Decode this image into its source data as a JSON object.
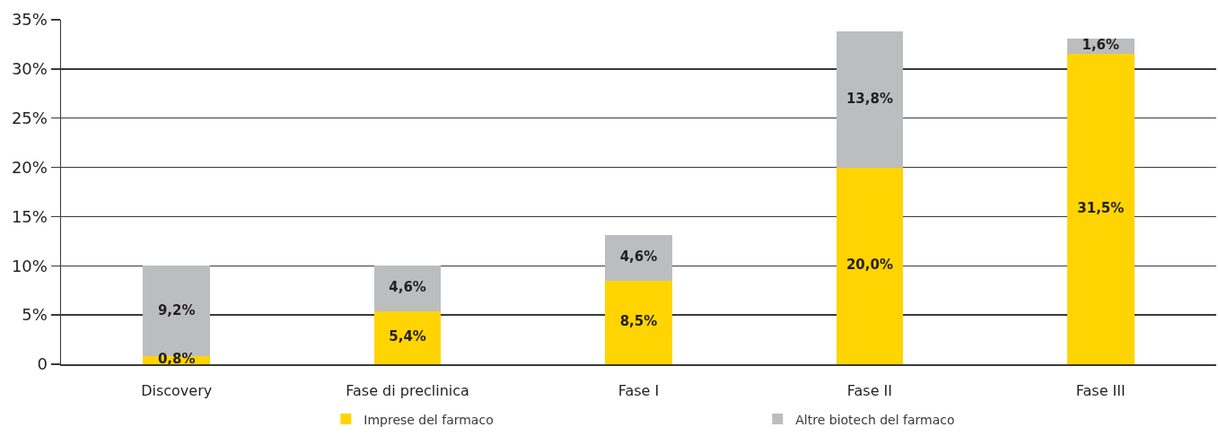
{
  "chart_data": {
    "type": "bar",
    "stacked": true,
    "categories": [
      "Discovery",
      "Fase di preclinica",
      "Fase I",
      "Fase II",
      "Fase III"
    ],
    "series": [
      {
        "name": "Imprese del farmaco",
        "color": "#ffd400",
        "values": [
          0.8,
          5.4,
          8.5,
          20.0,
          31.5
        ],
        "value_labels": [
          "0,8%",
          "5,4%",
          "8,5%",
          "20,0%",
          "31,5%"
        ]
      },
      {
        "name": "Altre biotech del farmaco",
        "color": "#bcbdbf",
        "values": [
          9.2,
          4.6,
          4.6,
          13.8,
          1.6
        ],
        "value_labels": [
          "9,2%",
          "4,6%",
          "4,6%",
          "13,8%",
          "1,6%"
        ]
      }
    ],
    "ylim": [
      0,
      35
    ],
    "yticks": [
      0,
      {
        "value": 5,
        "label": "5%"
      },
      {
        "value": 10,
        "label": "10%"
      },
      {
        "value": 15,
        "label": "15%"
      },
      {
        "value": 20,
        "label": "20%"
      },
      {
        "value": 25,
        "label": "25%"
      },
      {
        "value": 30,
        "label": "30%"
      },
      {
        "value": 35,
        "label": "35%"
      }
    ],
    "grid": "y",
    "legend": "bottom"
  }
}
